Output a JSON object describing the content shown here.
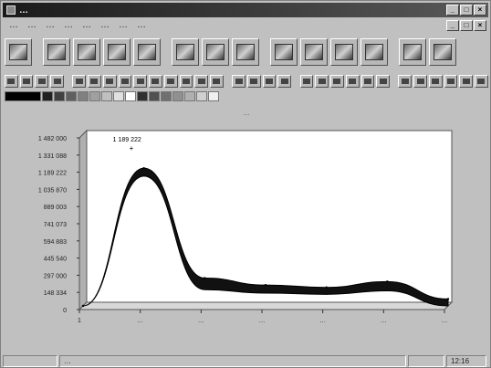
{
  "window": {
    "title": "…",
    "controls": {
      "minimize": "_",
      "maximize": "□",
      "close": "×"
    }
  },
  "menu": {
    "items": [
      "…",
      "…",
      "…",
      "…",
      "…",
      "…",
      "…",
      "…"
    ]
  },
  "toolbar_big": {
    "buttons": [
      "chart-type-1-icon",
      "chart-type-2-icon",
      "chart-type-3-icon",
      "chart-type-4-icon",
      "chart-type-5-icon",
      "bar-chart-icon",
      "bar-chart-2-icon",
      "stacked-bar-icon",
      "monitor-icon",
      "column-chart-icon",
      "pie-chart-icon",
      "line-chart-icon",
      "stack-icon",
      "tools-icon"
    ]
  },
  "toolbar_small": {
    "count": 30
  },
  "palette": {
    "colors": [
      "#000000",
      "#202020",
      "#404040",
      "#606060",
      "#808080",
      "#a0a0a0",
      "#c0c0c0",
      "#e0e0e0",
      "#ffffff",
      "#303030",
      "#505050",
      "#707070",
      "#909090",
      "#b0b0b0",
      "#d0d0d0",
      "#f0f0f0"
    ]
  },
  "chart_caption": "…",
  "chart_data": {
    "type": "area",
    "title": "",
    "peak_label": "1 189 222",
    "y_ticks": [
      "1 482 000",
      "1 331 088",
      "1 189 222",
      "1 035 870",
      "889 003",
      "741 073",
      "594 883",
      "445 540",
      "297 000",
      "148 334",
      "0"
    ],
    "categories": [
      "1",
      "…",
      "…",
      "…",
      "…",
      "…",
      "…"
    ],
    "x_values": [
      0,
      1,
      2,
      3,
      4,
      5,
      6
    ],
    "series": [
      {
        "upper": [
          0,
          1189222,
          240000,
          180000,
          160000,
          210000,
          60000
        ],
        "lower": [
          0,
          1120000,
          140000,
          110000,
          100000,
          130000,
          0
        ]
      }
    ],
    "ylim": [
      0,
      1482000
    ],
    "grid": false,
    "legend": "none"
  },
  "status": {
    "left": "…",
    "right": "12:16"
  }
}
